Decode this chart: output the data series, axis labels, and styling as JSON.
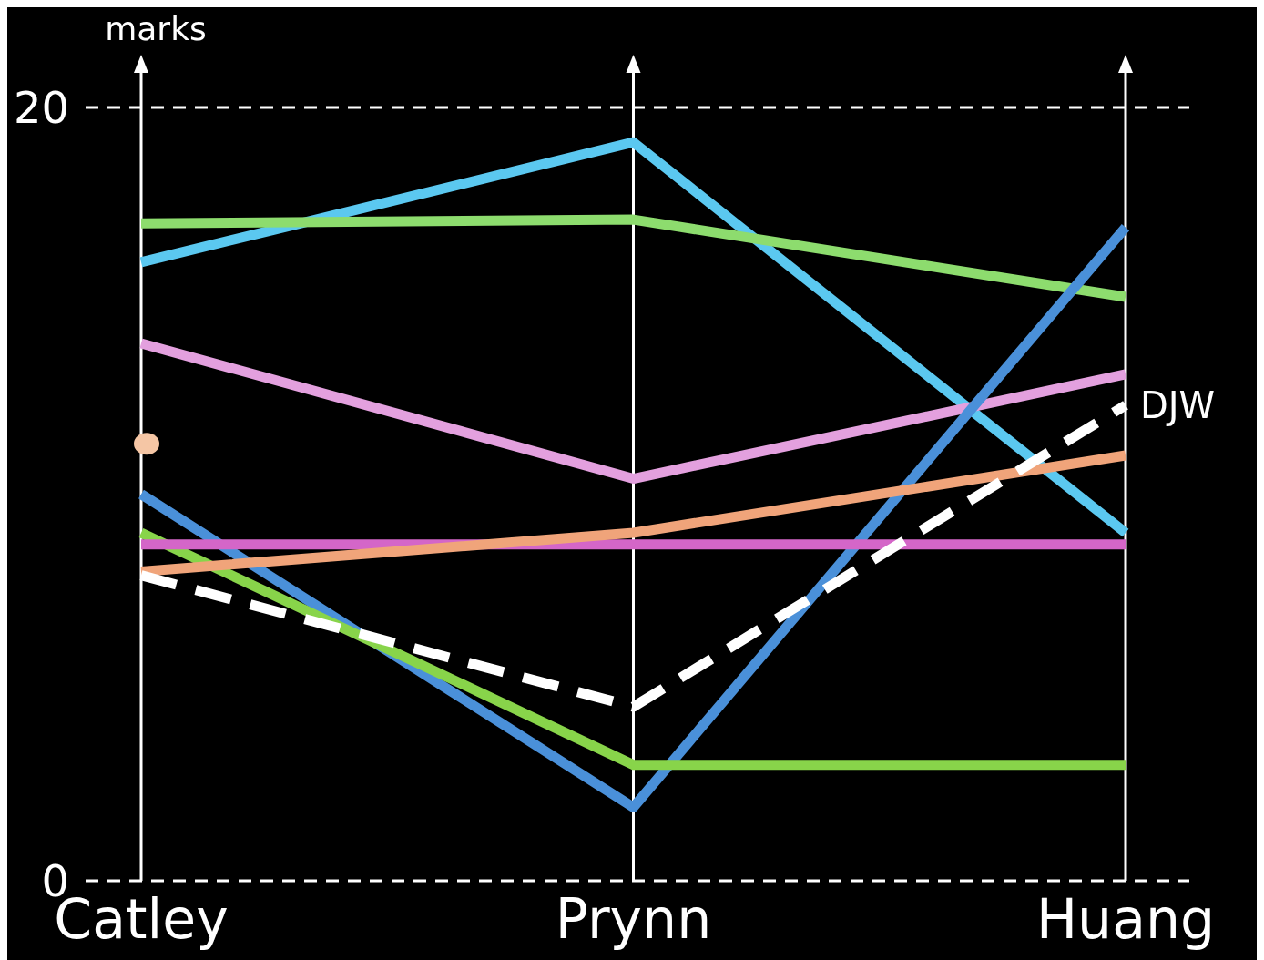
{
  "chart_data": {
    "type": "line",
    "ylabel": "marks",
    "categories": [
      "Catley",
      "Prynn",
      "Huang"
    ],
    "ylim": [
      0,
      20
    ],
    "yticks": [
      0,
      20
    ],
    "ref_lines": [
      {
        "axis": "y",
        "value": 0,
        "line_style": "dashed",
        "color": "#ffffff"
      },
      {
        "axis": "y",
        "value": 20,
        "line_style": "dashed",
        "color": "#ffffff"
      }
    ],
    "series": [
      {
        "color": "#5bc8f0",
        "values": [
          16.0,
          19.1,
          9.0
        ]
      },
      {
        "color": "#8ddc6e",
        "values": [
          17.0,
          17.1,
          15.1
        ]
      },
      {
        "color": "#e3a0de",
        "values": [
          13.9,
          10.4,
          13.1
        ]
      },
      {
        "type": "scatter",
        "marker": "circle",
        "color": "#f5c6a5",
        "values": [
          11.3,
          null,
          null
        ]
      },
      {
        "color": "#4a90d9",
        "values": [
          10.0,
          1.9,
          16.9
        ]
      },
      {
        "color": "#88d44a",
        "values": [
          9.0,
          3.0,
          3.0
        ]
      },
      {
        "color": "#d466c8",
        "values": [
          8.7,
          8.7,
          8.7
        ]
      },
      {
        "color": "#f0a47a",
        "values": [
          8.0,
          9.0,
          11.0
        ]
      },
      {
        "name": "DJW",
        "color": "#ffffff",
        "line_style": "dashed",
        "values": [
          7.9,
          4.5,
          12.3
        ]
      }
    ]
  }
}
